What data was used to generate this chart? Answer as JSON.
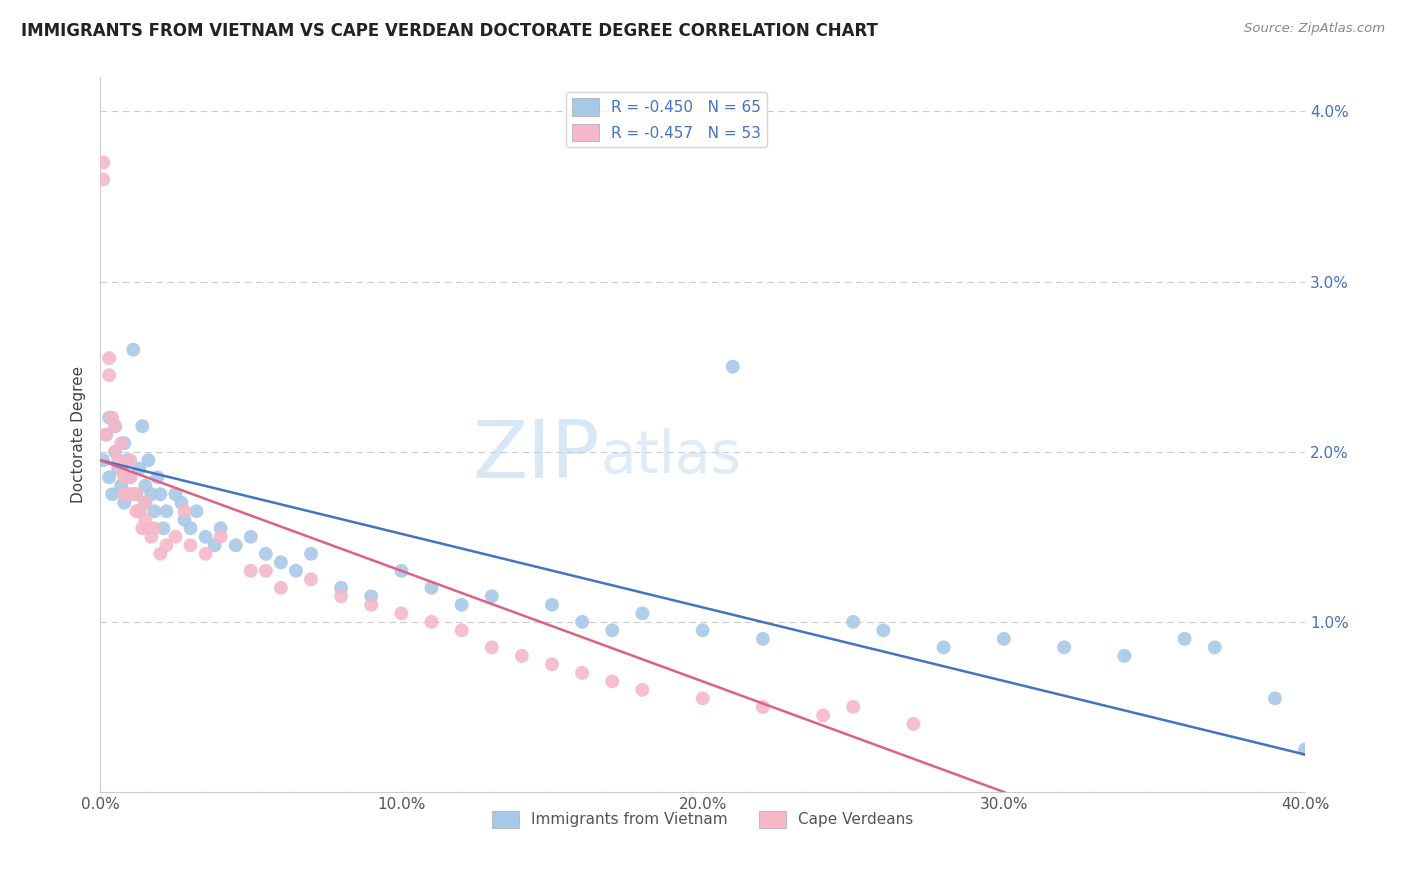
{
  "title": "IMMIGRANTS FROM VIETNAM VS CAPE VERDEAN DOCTORATE DEGREE CORRELATION CHART",
  "source": "Source: ZipAtlas.com",
  "ylabel": "Doctorate Degree",
  "watermark_left": "ZIP",
  "watermark_right": "atlas",
  "series": [
    {
      "label": "Immigrants from Vietnam",
      "R": -0.45,
      "N": 65,
      "color": "#a8c8e8",
      "line_color": "#4472c4",
      "x": [
        0.001,
        0.002,
        0.003,
        0.003,
        0.004,
        0.005,
        0.005,
        0.006,
        0.007,
        0.008,
        0.008,
        0.009,
        0.01,
        0.01,
        0.011,
        0.012,
        0.013,
        0.013,
        0.014,
        0.015,
        0.015,
        0.016,
        0.017,
        0.018,
        0.019,
        0.02,
        0.021,
        0.022,
        0.025,
        0.027,
        0.028,
        0.03,
        0.032,
        0.035,
        0.038,
        0.04,
        0.045,
        0.05,
        0.055,
        0.06,
        0.065,
        0.07,
        0.08,
        0.09,
        0.1,
        0.11,
        0.12,
        0.13,
        0.15,
        0.16,
        0.17,
        0.18,
        0.2,
        0.21,
        0.22,
        0.25,
        0.26,
        0.28,
        0.3,
        0.32,
        0.34,
        0.36,
        0.37,
        0.39,
        0.4
      ],
      "y": [
        0.0195,
        0.021,
        0.0185,
        0.022,
        0.0175,
        0.02,
        0.0215,
        0.019,
        0.018,
        0.017,
        0.0205,
        0.0195,
        0.0185,
        0.0175,
        0.026,
        0.0175,
        0.019,
        0.0165,
        0.0215,
        0.018,
        0.017,
        0.0195,
        0.0175,
        0.0165,
        0.0185,
        0.0175,
        0.0155,
        0.0165,
        0.0175,
        0.017,
        0.016,
        0.0155,
        0.0165,
        0.015,
        0.0145,
        0.0155,
        0.0145,
        0.015,
        0.014,
        0.0135,
        0.013,
        0.014,
        0.012,
        0.0115,
        0.013,
        0.012,
        0.011,
        0.0115,
        0.011,
        0.01,
        0.0095,
        0.0105,
        0.0095,
        0.025,
        0.009,
        0.01,
        0.0095,
        0.0085,
        0.009,
        0.0085,
        0.008,
        0.009,
        0.0085,
        0.0055,
        0.0025
      ],
      "line_x0": 0.0,
      "line_y0": 0.0195,
      "line_x1": 0.4,
      "line_y1": 0.0022
    },
    {
      "label": "Cape Verdeans",
      "R": -0.457,
      "N": 53,
      "color": "#f4b8c8",
      "line_color": "#e06080",
      "x": [
        0.001,
        0.001,
        0.002,
        0.003,
        0.003,
        0.004,
        0.005,
        0.005,
        0.006,
        0.007,
        0.007,
        0.008,
        0.008,
        0.009,
        0.01,
        0.01,
        0.011,
        0.012,
        0.012,
        0.013,
        0.014,
        0.015,
        0.015,
        0.016,
        0.017,
        0.018,
        0.02,
        0.022,
        0.025,
        0.028,
        0.03,
        0.035,
        0.04,
        0.05,
        0.055,
        0.06,
        0.07,
        0.08,
        0.09,
        0.1,
        0.11,
        0.12,
        0.13,
        0.14,
        0.15,
        0.16,
        0.17,
        0.18,
        0.2,
        0.22,
        0.24,
        0.25,
        0.27
      ],
      "y": [
        0.036,
        0.037,
        0.021,
        0.0245,
        0.0255,
        0.022,
        0.02,
        0.0215,
        0.0195,
        0.019,
        0.0205,
        0.0185,
        0.0175,
        0.0175,
        0.0185,
        0.0195,
        0.0175,
        0.0165,
        0.0175,
        0.0165,
        0.0155,
        0.016,
        0.017,
        0.0155,
        0.015,
        0.0155,
        0.014,
        0.0145,
        0.015,
        0.0165,
        0.0145,
        0.014,
        0.015,
        0.013,
        0.013,
        0.012,
        0.0125,
        0.0115,
        0.011,
        0.0105,
        0.01,
        0.0095,
        0.0085,
        0.008,
        0.0075,
        0.007,
        0.0065,
        0.006,
        0.0055,
        0.005,
        0.0045,
        0.005,
        0.004
      ],
      "line_x0": 0.0,
      "line_y0": 0.0195,
      "line_x1": 0.3,
      "line_y1": 0.0
    }
  ],
  "xlim": [
    0,
    0.4
  ],
  "ylim": [
    0,
    0.042
  ],
  "xticks": [
    0.0,
    0.1,
    0.2,
    0.3,
    0.4
  ],
  "xtick_labels": [
    "0.0%",
    "10.0%",
    "20.0%",
    "30.0%",
    "40.0%"
  ],
  "yticks": [
    0.0,
    0.01,
    0.02,
    0.03,
    0.04
  ],
  "ytick_labels": [
    "",
    "1.0%",
    "2.0%",
    "3.0%",
    "4.0%"
  ],
  "background_color": "#ffffff",
  "grid_color": "#cccccc",
  "figsize": [
    14.06,
    8.92
  ],
  "dpi": 100
}
